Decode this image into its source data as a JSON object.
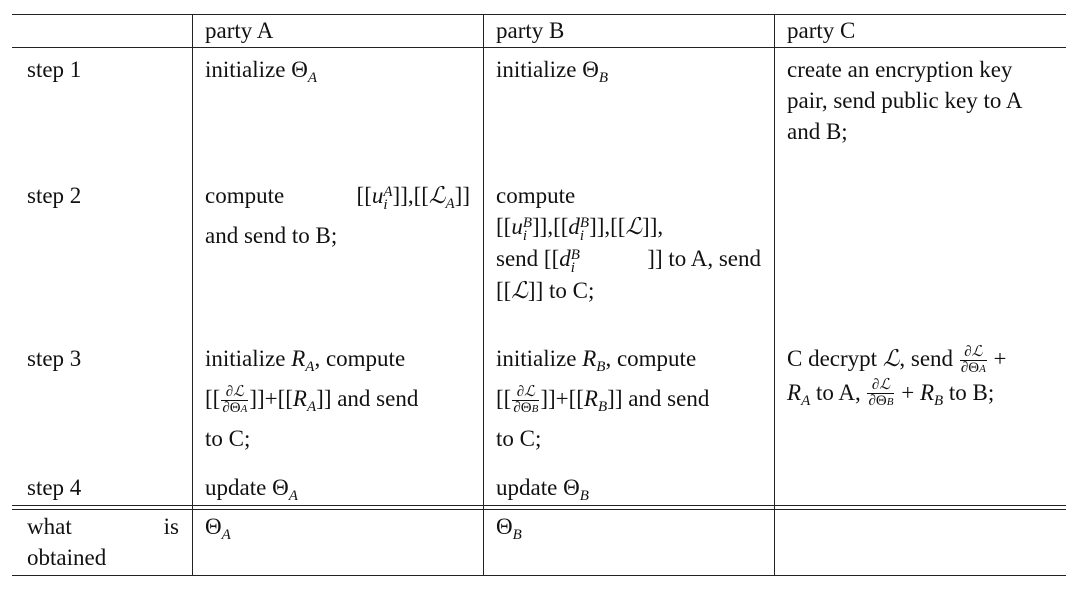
{
  "header": {
    "row_label": "",
    "col_a": "party A",
    "col_b": "party B",
    "col_c": "party C"
  },
  "rows": [
    {
      "label": "step 1",
      "a": {
        "prefix": "initialize ",
        "theta": "Θ",
        "sub": "A"
      },
      "b": {
        "prefix": "initialize ",
        "theta": "Θ",
        "sub": "B"
      },
      "c": {
        "text": "create an encryption key pair, send public key to A and B;"
      }
    },
    {
      "label": "step 2",
      "a": {
        "compute": "compute",
        "bracket_open": "[[",
        "u": "u",
        "u_sup": "A",
        "u_sub": "i",
        "mid": "]],[[",
        "L": "ℒ",
        "L_sub": "A",
        "close": "]]",
        "tail": "and send to B;"
      },
      "b": {
        "compute": "compute",
        "part1_open": "[[",
        "u": "u",
        "u_sup": "B",
        "u_sub": "i",
        "part1_mid": "]],[[",
        "d": "d",
        "d_sup": "B",
        "d_sub": "i",
        "part1_mid2": "]],[[",
        "L": "ℒ",
        "part1_close": "]],",
        "send1": "send [[",
        "d2": "d",
        "d2_sup": "B",
        "d2_sub": "i",
        "send1_tail": "]] to A, send",
        "send2_open": "[[",
        "L2": "ℒ",
        "send2_tail": "]] to C;"
      }
    },
    {
      "label": "step 3",
      "a": {
        "prefix": "initialize ",
        "R": "R",
        "R_sub": "A",
        "after_R": ", compute",
        "open": "[[",
        "frac_num": "∂ℒ",
        "frac_den": "∂Θ",
        "frac_den_sub": "A",
        "mid": "]]+[[",
        "R2": "R",
        "R2_sub": "A",
        "tail": "]] and send",
        "tail2": "to C;"
      },
      "b": {
        "prefix": "initialize ",
        "R": "R",
        "R_sub": "B",
        "after_R": ", compute",
        "open": "[[",
        "frac_num": "∂ℒ",
        "frac_den": "∂Θ",
        "frac_den_sub": "B",
        "mid": "]]+[[",
        "R2": "R",
        "R2_sub": "B",
        "tail": "]] and send",
        "tail2": "to C;"
      },
      "c": {
        "start": "C decrypt ",
        "L": "ℒ",
        "send": ", send ",
        "f1_num": "∂ℒ",
        "f1_den": "∂Θ",
        "f1_den_sub": "A",
        "plus1": " +",
        "R1": "R",
        "R1_sub": "A",
        "toA": " to A, ",
        "f2_num": "∂ℒ",
        "f2_den": "∂Θ",
        "f2_den_sub": "B",
        "plus2": " + ",
        "R2": "R",
        "R2_sub": "B",
        "toB": " to B;"
      }
    },
    {
      "label": "step 4",
      "a": {
        "prefix": "update ",
        "theta": "Θ",
        "sub": "A"
      },
      "b": {
        "prefix": "update ",
        "theta": "Θ",
        "sub": "B"
      },
      "c": {
        "text": ""
      }
    }
  ],
  "footer": {
    "label_word1": "what",
    "label_word2": "is",
    "label_word3": "obtained",
    "a": {
      "theta": "Θ",
      "sub": "A"
    },
    "b": {
      "theta": "Θ",
      "sub": "B"
    },
    "c": ""
  }
}
